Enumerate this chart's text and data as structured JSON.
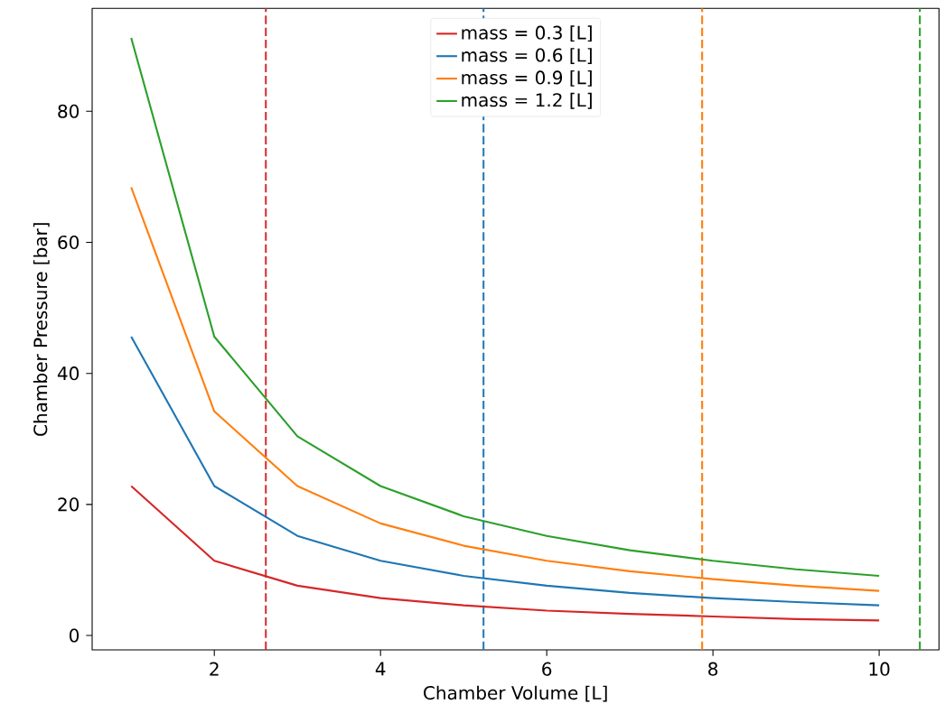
{
  "chart_data": {
    "type": "line",
    "xlabel": "Chamber Volume [L]",
    "ylabel": "Chamber Pressure [bar]",
    "x": [
      1,
      2,
      3,
      4,
      5,
      6,
      7,
      8,
      9,
      10
    ],
    "series": [
      {
        "name": "mass = 0.3 [L]",
        "color": "#d62728",
        "values": [
          22.8,
          11.4,
          7.6,
          5.7,
          4.6,
          3.8,
          3.3,
          2.9,
          2.5,
          2.3
        ]
      },
      {
        "name": "mass = 0.6 [L]",
        "color": "#1f77b4",
        "values": [
          45.6,
          22.8,
          15.2,
          11.4,
          9.1,
          7.6,
          6.5,
          5.7,
          5.1,
          4.6
        ]
      },
      {
        "name": "mass = 0.9 [L]",
        "color": "#ff7f0e",
        "values": [
          68.4,
          34.2,
          22.8,
          17.1,
          13.7,
          11.4,
          9.8,
          8.6,
          7.6,
          6.8
        ]
      },
      {
        "name": "mass = 1.2 [L]",
        "color": "#2ca02c",
        "values": [
          91.2,
          45.6,
          30.4,
          22.8,
          18.2,
          15.2,
          13.0,
          11.4,
          10.1,
          9.1
        ]
      }
    ],
    "ref_lines": [
      {
        "axis": "x",
        "value": 2.62,
        "color": "#d62728",
        "line_style": "dashed"
      },
      {
        "axis": "x",
        "value": 5.24,
        "color": "#1f77b4",
        "line_style": "dashed"
      },
      {
        "axis": "x",
        "value": 7.87,
        "color": "#ff7f0e",
        "line_style": "dashed"
      },
      {
        "axis": "x",
        "value": 10.49,
        "color": "#2ca02c",
        "line_style": "dashed"
      }
    ],
    "xlim": [
      0.53,
      10.72
    ],
    "ylim": [
      -2.2,
      95.7
    ],
    "xticks": [
      2,
      4,
      6,
      8,
      10
    ],
    "yticks": [
      0,
      20,
      40,
      60,
      80
    ],
    "grid": false,
    "legend": "top",
    "marker": "none",
    "line_style": "solid"
  }
}
